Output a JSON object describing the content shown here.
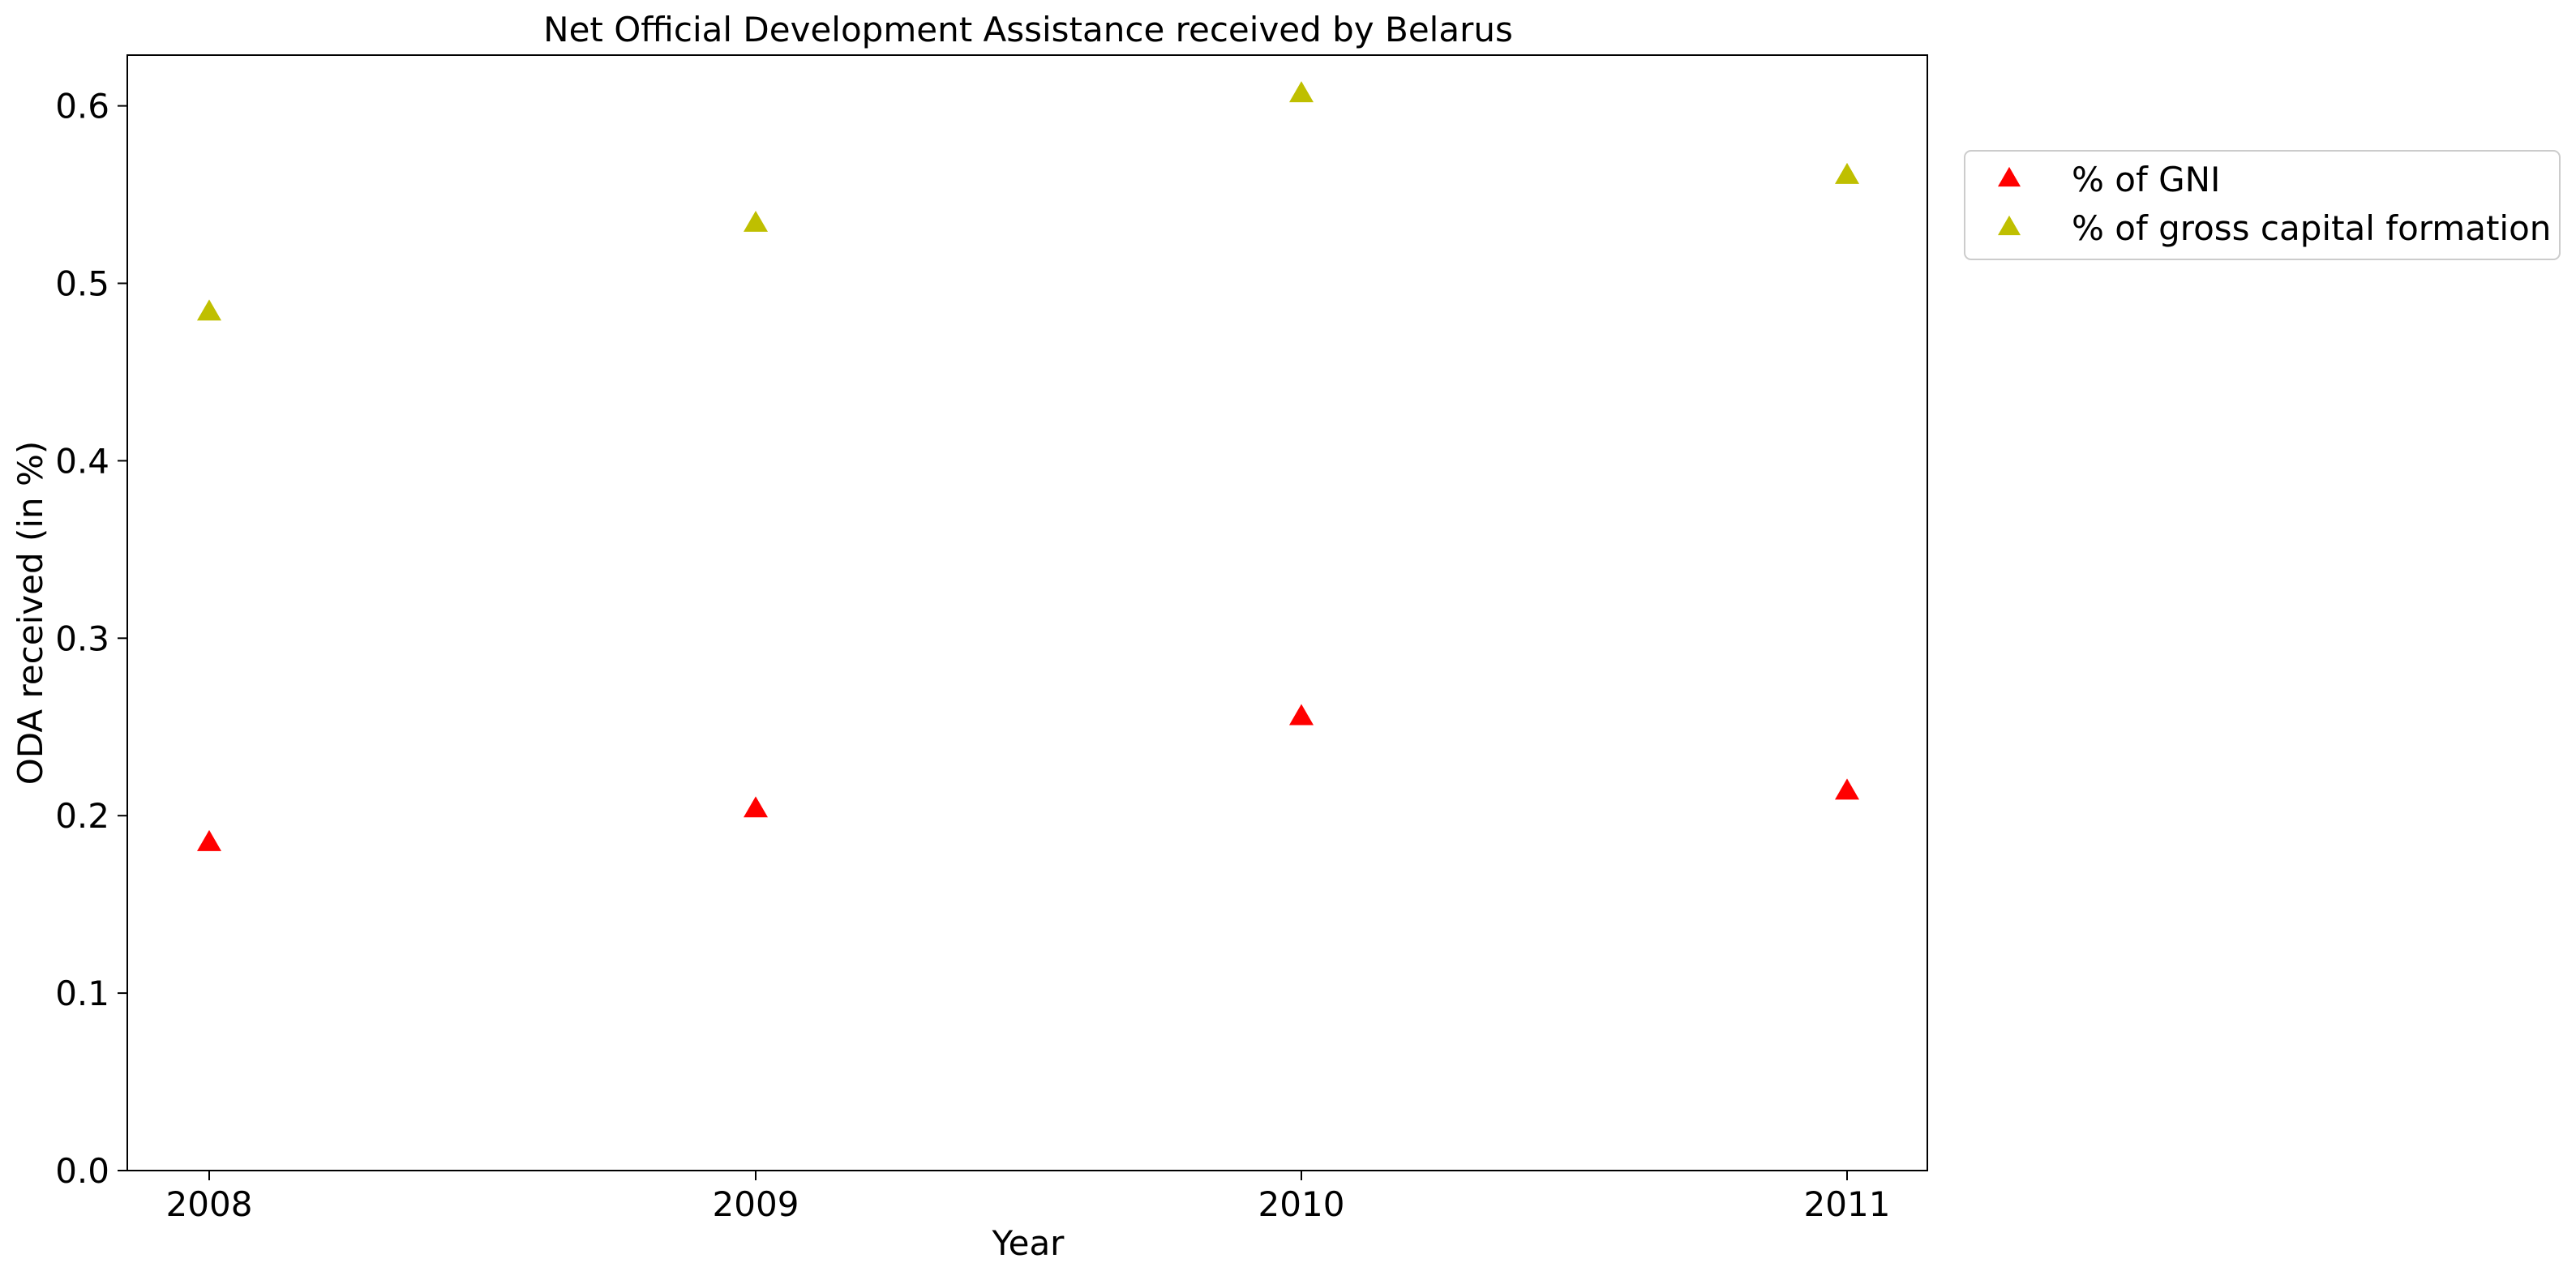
{
  "chart_data": {
    "type": "scatter",
    "title": "Net Official Development Assistance received by Belarus",
    "xlabel": "Year",
    "ylabel": "ODA received (in %)",
    "x": [
      "2008",
      "2009",
      "2010",
      "2011"
    ],
    "ylim": [
      0.0,
      0.6286
    ],
    "yticks": [
      0.0,
      0.1,
      0.2,
      0.3,
      0.4,
      0.5,
      0.6
    ],
    "ytick_labels": [
      "0.0",
      "0.1",
      "0.2",
      "0.3",
      "0.4",
      "0.5",
      "0.6"
    ],
    "grid": false,
    "legend_position": "outside-top-right",
    "marker": "triangle-up",
    "series": [
      {
        "name": "% of GNI",
        "color": "#ff0000",
        "values": [
          0.184,
          0.203,
          0.255,
          0.213
        ]
      },
      {
        "name": "% of gross capital formation",
        "color": "#bfbf00",
        "values": [
          0.483,
          0.533,
          0.606,
          0.56
        ]
      }
    ]
  }
}
